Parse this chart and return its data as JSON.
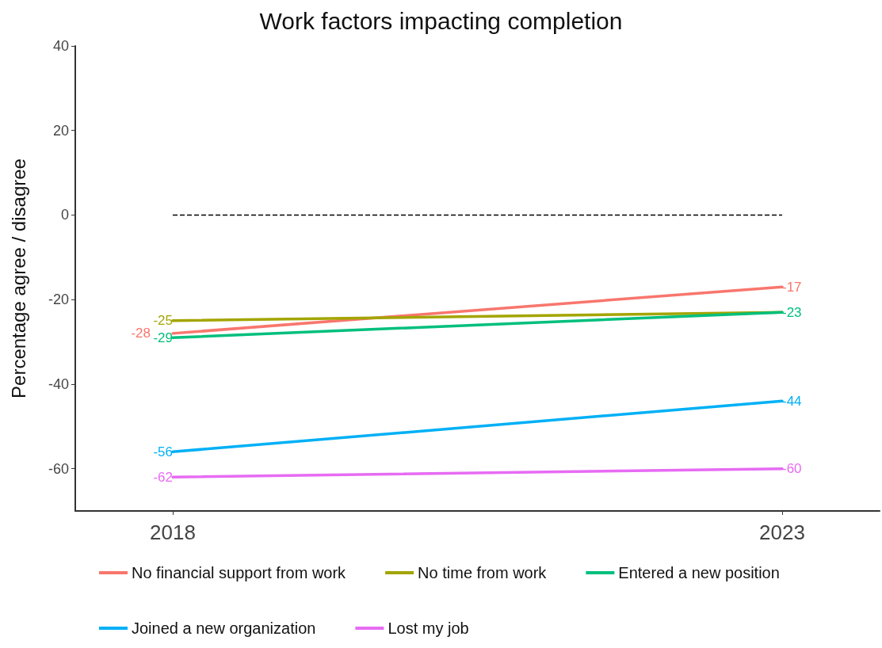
{
  "chart_data": {
    "type": "line",
    "title": "Work factors impacting completion",
    "ylabel": "Percentage agree / disagree",
    "x": [
      2018,
      2023
    ],
    "xlim": [
      2017.2,
      2023.8
    ],
    "xticks": [
      2018,
      2023
    ],
    "ylim": [
      -70,
      40
    ],
    "yticks": [
      -60,
      -40,
      -20,
      0,
      20,
      40
    ],
    "grid": false,
    "legend": "bottom",
    "marker": "none",
    "line_style": "solid",
    "data_labels": true,
    "ref_lines": [
      {
        "axis": "y",
        "value": 0,
        "line_style": "dashed",
        "color": "#000000"
      }
    ],
    "series": [
      {
        "name": "No financial support from work",
        "color": "#f8766d",
        "values": [
          -28,
          -17
        ]
      },
      {
        "name": "No time from work",
        "color": "#a3a500",
        "values": [
          -25,
          -23
        ],
        "value_labels": [
          "-25",
          null
        ]
      },
      {
        "name": "Entered a new position",
        "color": "#00bf7d",
        "values": [
          -29,
          -23
        ]
      },
      {
        "name": "Joined a new organization",
        "color": "#00b0f6",
        "values": [
          -56,
          -44
        ]
      },
      {
        "name": "Lost my job",
        "color": "#e76bf3",
        "values": [
          -62,
          -60
        ]
      }
    ]
  }
}
